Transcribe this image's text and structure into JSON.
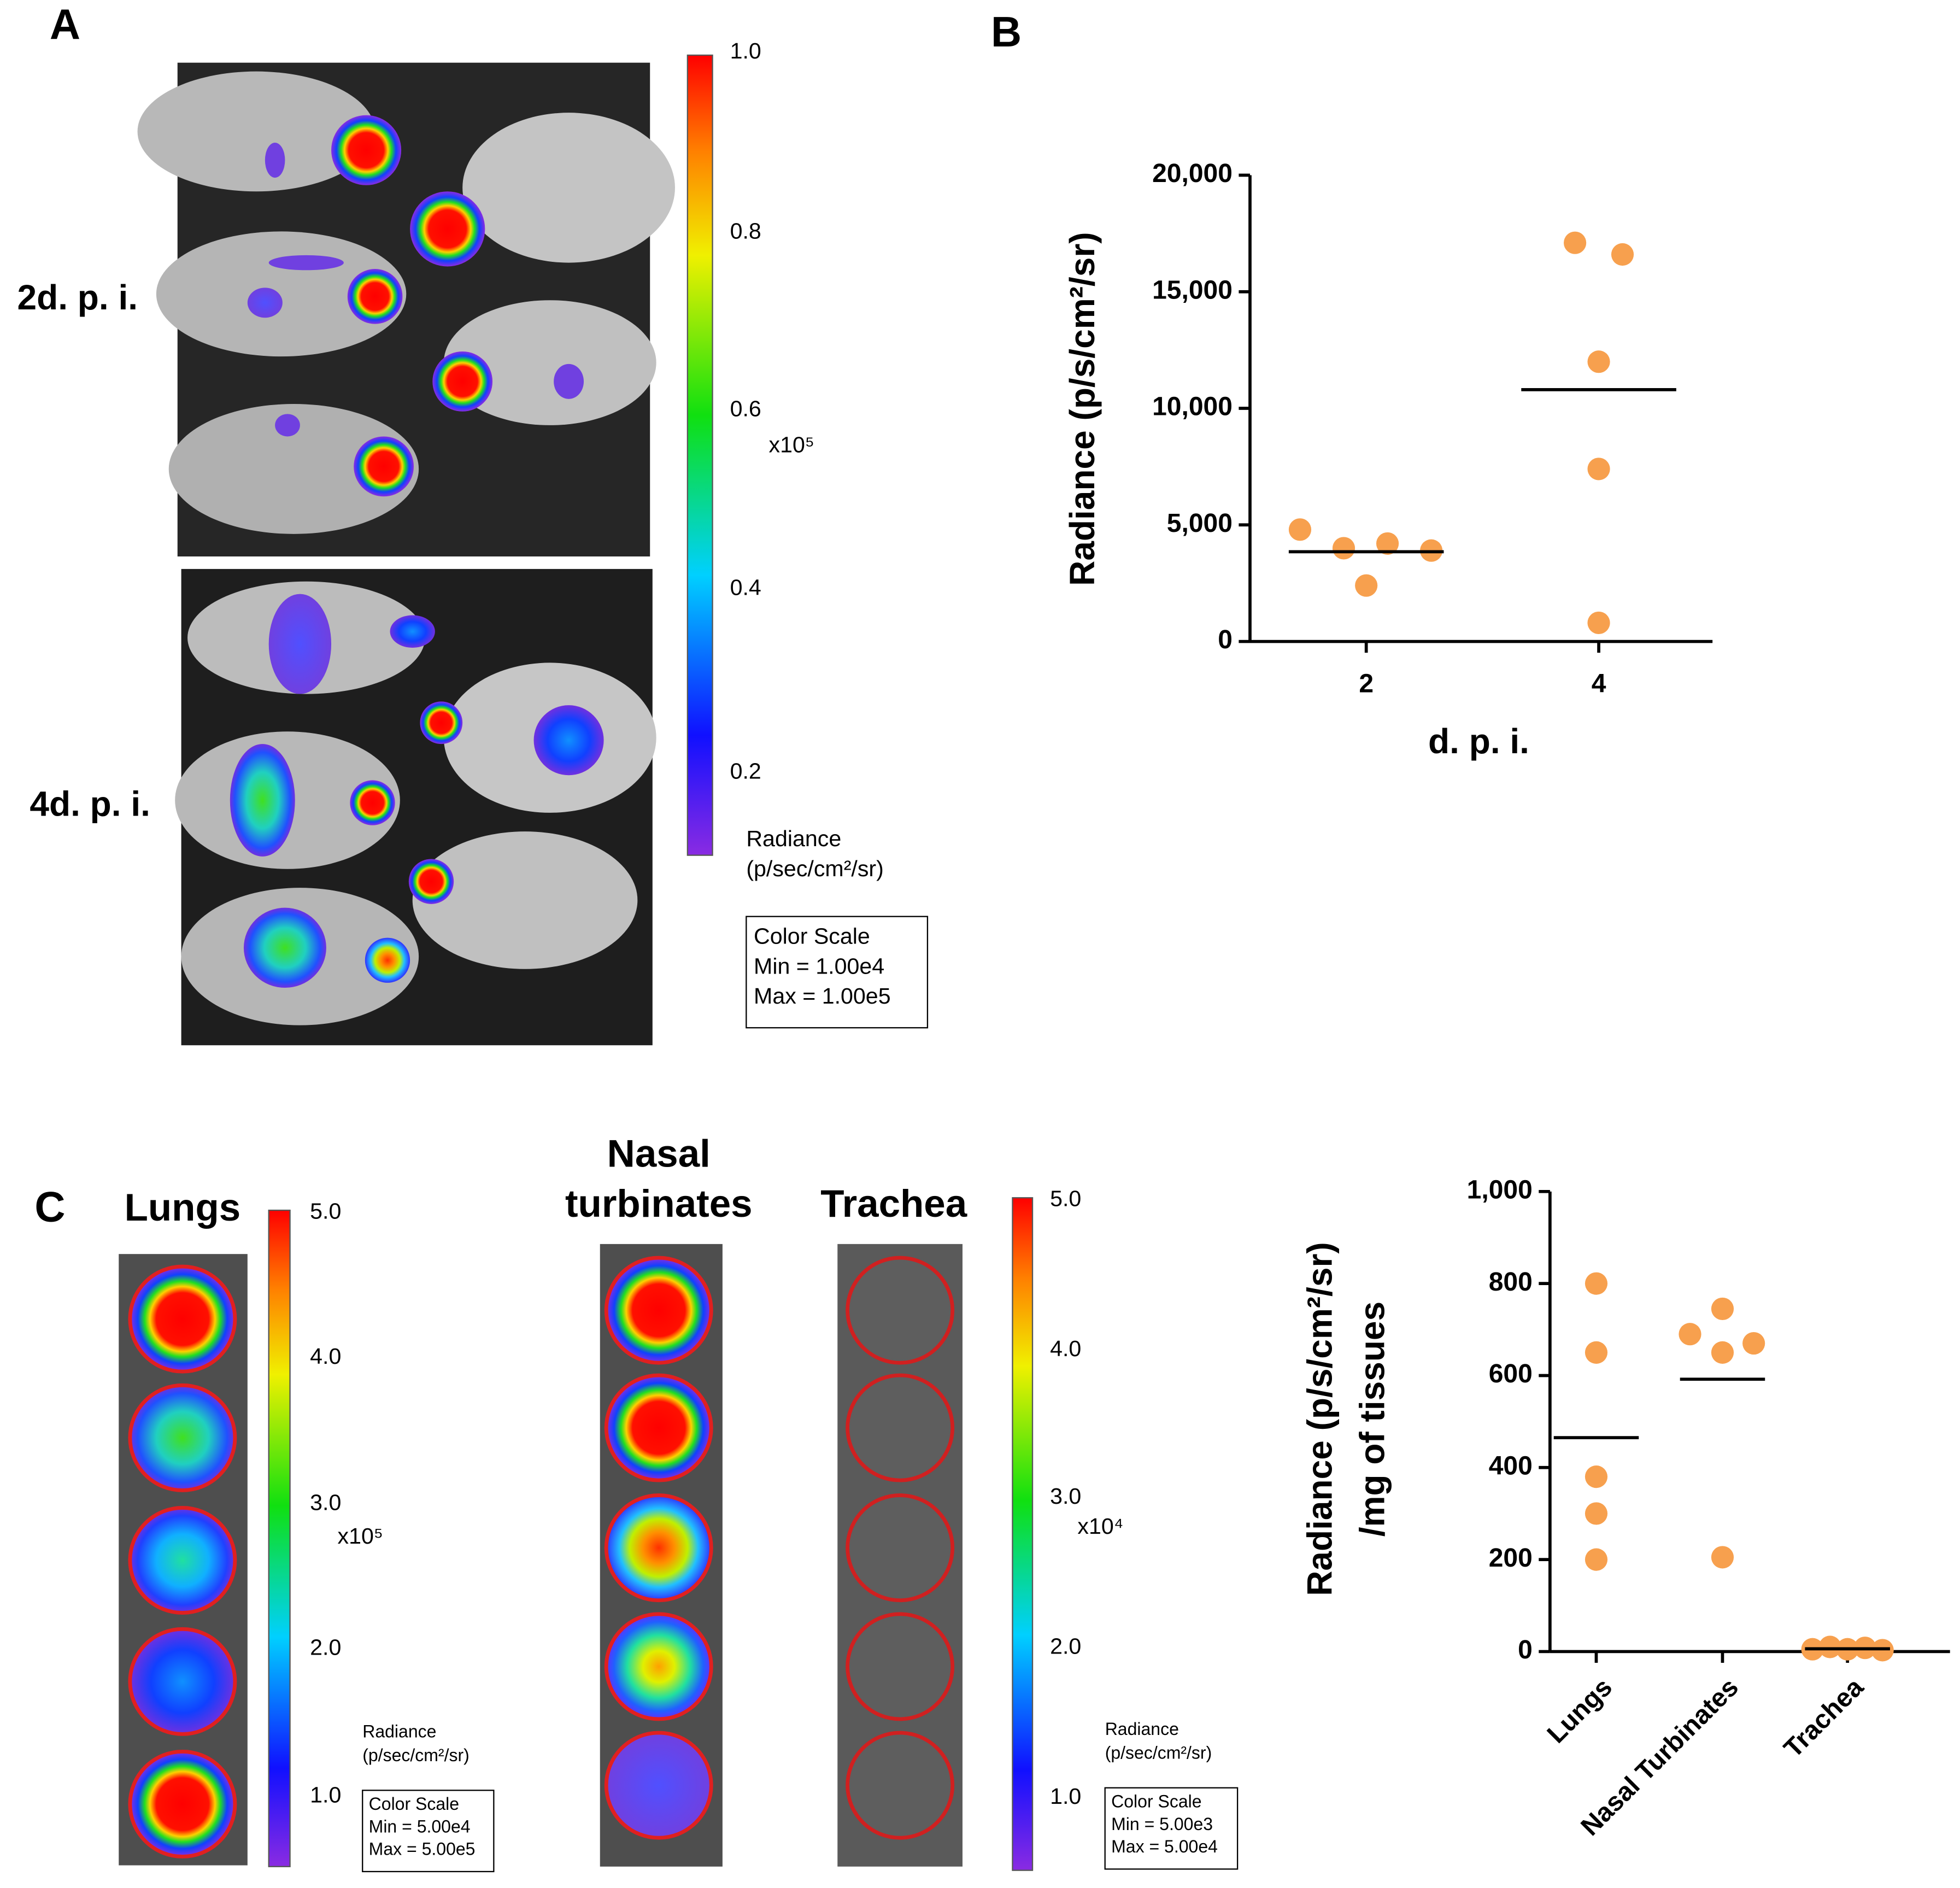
{
  "panel_labels": [
    "A",
    "B",
    "C"
  ],
  "panel_a": {
    "rows": [
      "2d. p. i.",
      "4d. p. i."
    ],
    "colorbar": {
      "ticks": [
        "1.0",
        "0.8",
        "0.6",
        "0.4",
        "0.2"
      ],
      "multiplier": "x10⁵",
      "unit": [
        "Radiance",
        "(p/sec/cm²/sr)"
      ],
      "scale": [
        "Color Scale",
        "Min = 1.00e4",
        "Max = 1.00e5"
      ]
    }
  },
  "panel_c": {
    "titles": [
      "Lungs",
      "Nasal",
      "turbinates",
      "Trachea"
    ],
    "colorbars": [
      {
        "ticks": [
          "5.0",
          "4.0",
          "3.0",
          "2.0",
          "1.0"
        ],
        "multiplier": "x10⁵",
        "unit": [
          "Radiance",
          "(p/sec/cm²/sr)"
        ],
        "scale": [
          "Color Scale",
          "Min = 5.00e4",
          "Max = 5.00e5"
        ]
      },
      {
        "ticks": [
          "5.0",
          "4.0",
          "3.0",
          "2.0",
          "1.0"
        ],
        "multiplier": "x10⁴",
        "unit": [
          "Radiance",
          "(p/sec/cm²/sr)"
        ],
        "scale": [
          "Color Scale",
          "Min = 5.00e3",
          "Max = 5.00e4"
        ]
      }
    ]
  },
  "chart_data": [
    {
      "type": "strip",
      "categories": [
        "2",
        "4"
      ],
      "values": [
        [
          4800,
          4000,
          4200,
          2400,
          3900
        ],
        [
          17100,
          16600,
          12000,
          7400,
          800
        ]
      ],
      "means": [
        3850,
        10800
      ],
      "color": "#f7a04e",
      "mean_color": "#000000",
      "ylim": [
        0,
        20000
      ],
      "yticks": [
        0,
        {
          "value": 5000,
          "label": "5,000"
        },
        {
          "value": 10000,
          "label": "10,000"
        },
        {
          "value": 15000,
          "label": "15,000"
        },
        {
          "value": 20000,
          "label": "20,000"
        }
      ],
      "y_label": [
        "Radiance (p/s/cm²/sr)"
      ],
      "x_label": "d. p. i."
    },
    {
      "type": "strip",
      "categories": [
        "Lungs",
        "Nasal Turbinates",
        "Trachea"
      ],
      "values": [
        [
          800,
          650,
          380,
          300,
          200
        ],
        [
          745,
          690,
          650,
          670,
          205
        ],
        [
          5,
          10,
          5,
          8,
          3
        ]
      ],
      "means": [
        465,
        592,
        6
      ],
      "color": "#f7a04e",
      "mean_color": "#000000",
      "ylim": [
        0,
        1000
      ],
      "yticks": [
        0,
        200,
        400,
        600,
        800,
        {
          "value": 1000,
          "label": "1,000"
        }
      ],
      "y_label": [
        "Radiance (p/s/cm²/sr)",
        "/mg of tissues"
      ]
    }
  ]
}
